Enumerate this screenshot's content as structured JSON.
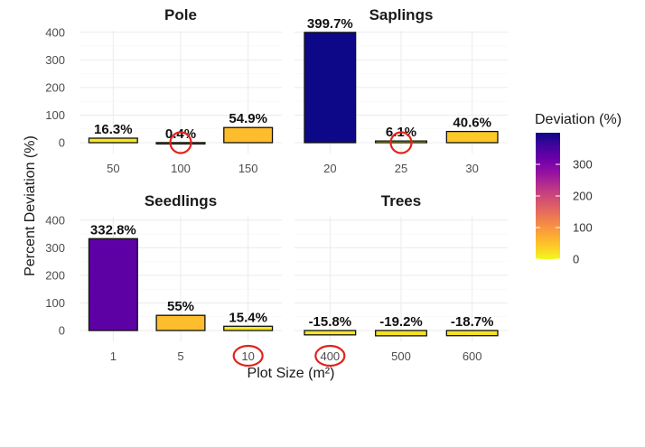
{
  "chart_data": {
    "type": "bar",
    "xlabel": "Plot Size (m²)",
    "ylabel": "Percent Deviation (%)",
    "ylim": [
      -30,
      410
    ],
    "yticks": [
      0,
      100,
      200,
      300,
      400
    ],
    "grid": true,
    "legend": {
      "title": "Deviation (%)",
      "placement": "right",
      "ticks": [
        0,
        100,
        200,
        300
      ],
      "range": [
        0,
        400
      ],
      "colors": [
        "#f0f921",
        "#fdca26",
        "#fca636",
        "#f2844b",
        "#e16462",
        "#cc4778",
        "#b12a90",
        "#8f0da4",
        "#6a00a8",
        "#41049d",
        "#0d0887"
      ]
    },
    "panels": [
      {
        "name": "Pole",
        "categories": [
          "50",
          "100",
          "150"
        ],
        "values": [
          16.3,
          0.4,
          54.9
        ],
        "labels": [
          "16.3%",
          "0.4%",
          "54.9%"
        ],
        "highlight": {
          "kind": "bar",
          "index": 1
        }
      },
      {
        "name": "Saplings",
        "categories": [
          "20",
          "25",
          "30"
        ],
        "values": [
          399.7,
          6.1,
          40.6
        ],
        "labels": [
          "399.7%",
          "6.1%",
          "40.6%"
        ],
        "highlight": {
          "kind": "bar",
          "index": 1
        }
      },
      {
        "name": "Seedlings",
        "categories": [
          "1",
          "5",
          "10"
        ],
        "values": [
          332.8,
          55,
          15.4
        ],
        "labels": [
          "332.8%",
          "55%",
          "15.4%"
        ],
        "highlight": {
          "kind": "tick",
          "index": 2
        }
      },
      {
        "name": "Trees",
        "categories": [
          "400",
          "500",
          "600"
        ],
        "values": [
          -15.8,
          -19.2,
          -18.7
        ],
        "labels": [
          "-15.8%",
          "-19.2%",
          "-18.7%"
        ],
        "highlight": {
          "kind": "tick",
          "index": 0
        }
      }
    ]
  }
}
